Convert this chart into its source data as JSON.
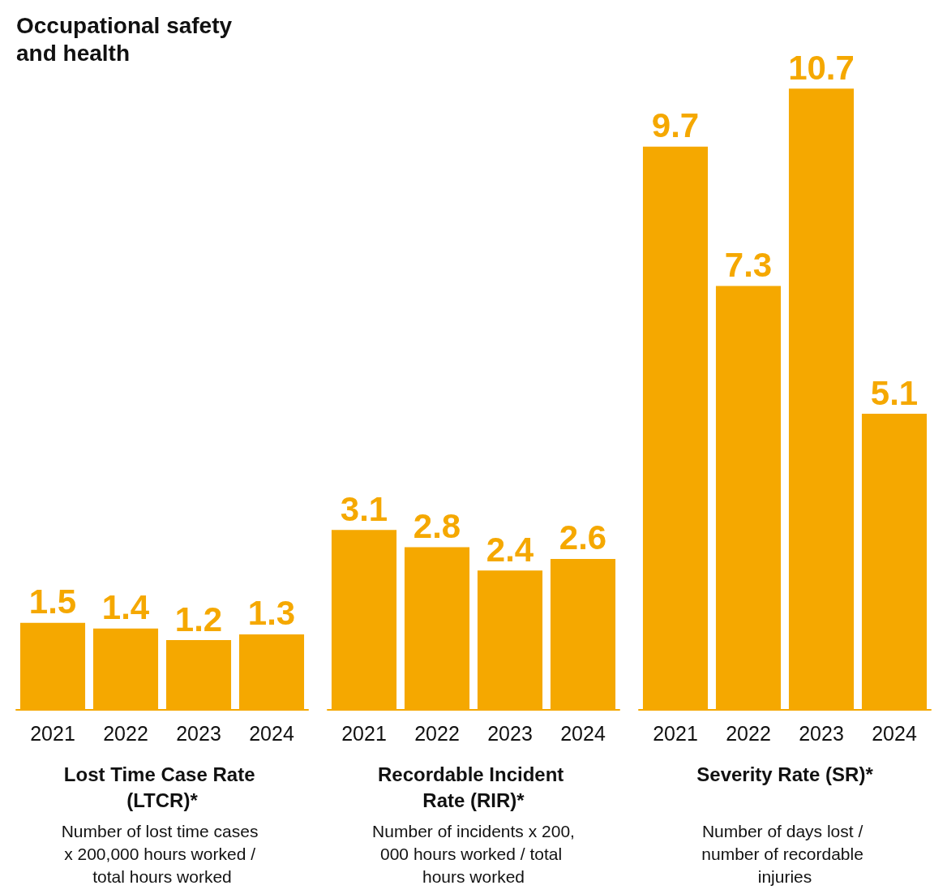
{
  "chart_data": [
    {
      "type": "bar",
      "annotations": [
        "Occupational safety and health"
      ],
      "title": "Lost Time Case Rate (LTCR)*",
      "subtitle": "Number of lost time cases x 200,000 hours worked / total hours worked",
      "categories": [
        "2021",
        "2022",
        "2023",
        "2024"
      ],
      "values": [
        1.5,
        1.4,
        1.2,
        1.3
      ],
      "color": "#f5a800",
      "data_labels": true,
      "tick_labels": "x"
    },
    {
      "type": "bar",
      "title": "Recordable Incident Rate (RIR)*",
      "subtitle": "Number of incidents x 200,000 hours worked / total hours worked",
      "categories": [
        "2021",
        "2022",
        "2023",
        "2024"
      ],
      "values": [
        3.1,
        2.8,
        2.4,
        2.6
      ],
      "color": "#f5a800",
      "data_labels": true,
      "tick_labels": "x"
    },
    {
      "type": "bar",
      "title": "Severity Rate (SR)*",
      "subtitle": "Number of days lost / number of recordable injuries",
      "categories": [
        "2021",
        "2022",
        "2023",
        "2024"
      ],
      "values": [
        9.7,
        7.3,
        10.7,
        5.1
      ],
      "color": "#f5a800",
      "data_labels": true,
      "tick_labels": "x"
    }
  ]
}
